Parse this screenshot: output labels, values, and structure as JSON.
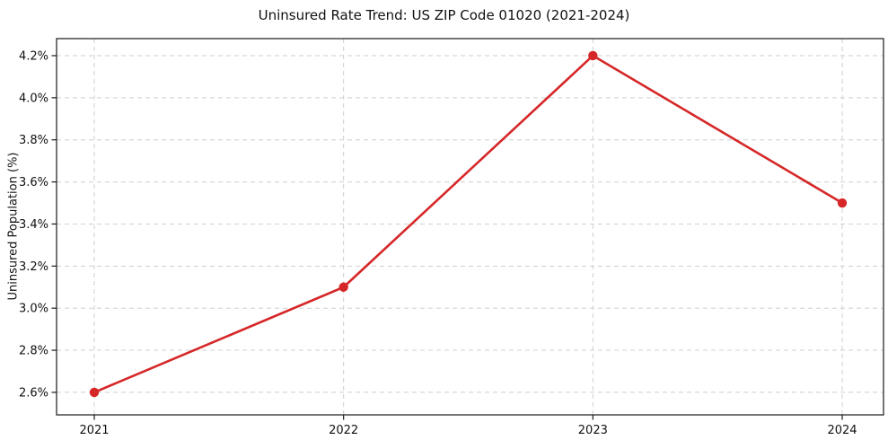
{
  "title": "Uninsured Rate Trend: US ZIP Code 01020 (2021-2024)",
  "chart_data": {
    "type": "line",
    "title": "Uninsured Rate Trend: US ZIP Code 01020 (2021-2024)",
    "x": [
      "2021",
      "2022",
      "2023",
      "2024"
    ],
    "series": [
      {
        "name": "Uninsured Population",
        "values": [
          2.6,
          3.1,
          4.2,
          3.5
        ]
      }
    ],
    "xlabel": "",
    "ylabel": "Uninsured Population (%)",
    "yticks": [
      2.6,
      2.8,
      3.0,
      3.2,
      3.4,
      3.6,
      3.8,
      4.0,
      4.2
    ],
    "ytick_labels": [
      "2.6%",
      "2.8%",
      "3.0%",
      "3.2%",
      "3.4%",
      "3.6%",
      "3.8%",
      "4.0%",
      "4.2%"
    ],
    "ylim": [
      2.493,
      4.281
    ],
    "grid": "dashed-both-axes",
    "legend_position": "none",
    "colors": {
      "line": "#d62728",
      "marker": "#d62728",
      "grid": "#cfcfcf",
      "spine": "#2a2a2a",
      "tick": "#1a1a1a",
      "background": "#ffffff"
    }
  }
}
